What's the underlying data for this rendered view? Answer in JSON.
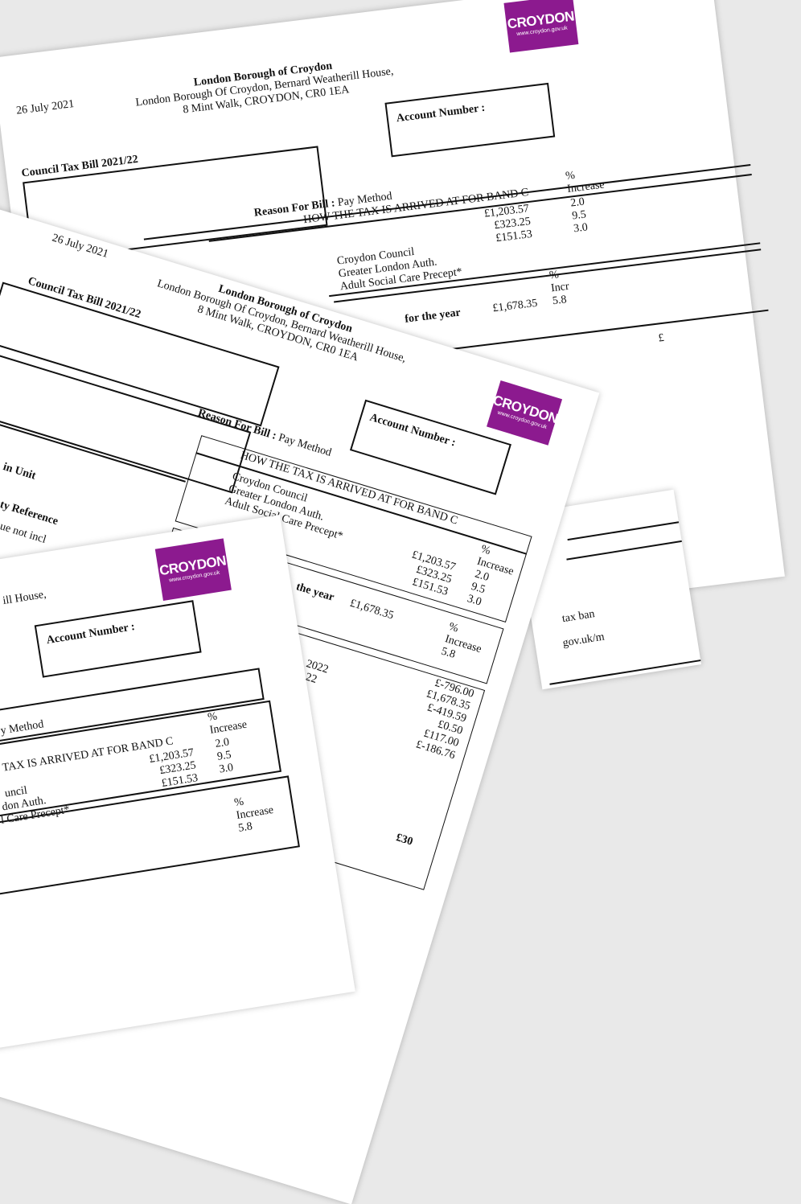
{
  "logo": {
    "name": "CROYDON",
    "url": "www.croydon.gov.uk",
    "color": "#8c1a8f"
  },
  "bill_back": {
    "date": "26 July 2021",
    "header": [
      "London Borough of Croydon",
      "London Borough Of Croydon, Bernard Weatherill House,",
      "8 Mint Walk, CROYDON, CR0 1EA"
    ],
    "title": "Council Tax Bill 2021/22",
    "account_label": "Account Number :",
    "reason_label": "Reason For Bill :",
    "reason_value": "Pay Method",
    "band_heading": "HOW THE TAX IS ARRIVED AT FOR BAND C",
    "pct_label": [
      "%",
      "Increase"
    ],
    "rows": [
      {
        "name": "Croydon Council",
        "amount": "£1,203.57",
        "increase": "2.0"
      },
      {
        "name": "Greater London Auth.",
        "amount": "£323.25",
        "increase": "9.5"
      },
      {
        "name": "Adult Social Care Precept*",
        "amount": "£151.53",
        "increase": "3.0"
      }
    ],
    "total_pct": [
      "%",
      "Incr",
      "5.8"
    ],
    "year_label": "for the year",
    "year_total": "£1,678.35",
    "edge_fragment": "£"
  },
  "bill_middle": {
    "date": "26 July 2021",
    "header": [
      "London Borough of Croydon",
      "London Borough Of Croydon, Bernard Weatherill House,",
      "8 Mint Walk, CROYDON, CR0 1EA"
    ],
    "title": "Council Tax Bill 2021/22",
    "account_label": "Account Number :",
    "reason_label": "Reason For Bill :",
    "reason_value": "Pay Method",
    "band_heading": "HOW THE TAX IS ARRIVED AT FOR BAND C",
    "pct_label": [
      "%",
      "Increase"
    ],
    "names": [
      "Croydon Council",
      "Greater London Auth.",
      "Adult Social Care Precept*"
    ],
    "amounts": [
      "£1,203.57",
      "£323.25",
      "£151.53"
    ],
    "increases": [
      "2.0",
      "9.5",
      "3.0"
    ],
    "year_label": "the year",
    "year_total": "£1,678.35",
    "total_pct": [
      "%",
      "Increase",
      "5.8"
    ],
    "left_fragments": [
      "in Unit",
      "ty Reference",
      "ue not incl"
    ],
    "year_fragments": [
      "2022",
      "22"
    ],
    "balances": [
      "£-796.00",
      "£1,678.35",
      "£-419.59",
      "£0.50",
      "£117.00",
      "£-186.76"
    ],
    "bottom_fragment": "£30"
  },
  "bill_front": {
    "header_fragment": "ill House,",
    "account_label": "Account Number :",
    "reason_fragment": "y Method",
    "band_heading": "TAX IS ARRIVED AT FOR BAND C",
    "pct_label": [
      "%",
      "Increase"
    ],
    "names": [
      "uncil",
      "don Auth.",
      "l Care Precept*"
    ],
    "amounts": [
      "£1,203.57",
      "£323.25",
      "£151.53"
    ],
    "increases": [
      "2.0",
      "9.5",
      "3.0"
    ],
    "total_pct": [
      "%",
      "Increase",
      "5.8"
    ]
  },
  "bill_right": {
    "fragments": [
      "tax ban",
      "gov.uk/m"
    ]
  }
}
